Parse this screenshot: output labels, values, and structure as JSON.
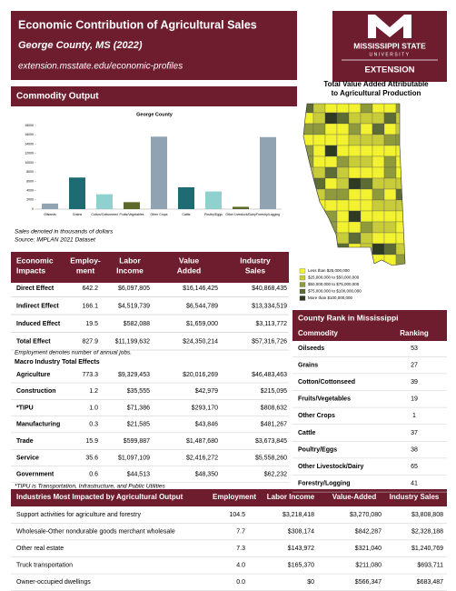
{
  "header": {
    "title": "Economic Contribution of Agricultural Sales",
    "subtitle": "George County, MS (2022)",
    "url": "extension.msstate.edu/economic-profiles"
  },
  "logo": {
    "line1": "MISSISSIPPI STATE",
    "line2": "UNIVERSITY",
    "line3": "EXTENSION"
  },
  "commodity_output": {
    "title": "Commodity Output",
    "note": "Sales denoted in thousands of dollars",
    "source": "Source: IMPLAN 2021 Dataset"
  },
  "chart_data": {
    "type": "bar",
    "title": "George County",
    "categories": [
      "Oilseeds",
      "Grains",
      "Cotton/Cottonseed",
      "Fruits/Vegetables",
      "Other Crops",
      "Cattle",
      "Poultry/Eggs",
      "Other Livestock/Dairy",
      "Forestry/Logging"
    ],
    "values": [
      1200,
      6800,
      3200,
      1500,
      15600,
      4700,
      3800,
      500,
      15500
    ],
    "colors": [
      "#8fa3b3",
      "#1f6b73",
      "#8fd1cf",
      "#5b6a2a",
      "#8fa3b3",
      "#1f6b73",
      "#8fd1cf",
      "#5b6a2a",
      "#8fa3b3"
    ],
    "ylim": [
      0,
      18000
    ],
    "yticks": [
      0,
      2000,
      4000,
      6000,
      8000,
      10000,
      12000,
      14000,
      16000,
      18000
    ]
  },
  "map": {
    "title": [
      "Total Value Added Attributable",
      "to Agricultural Production"
    ],
    "legend": [
      {
        "label": "Less than $25,000,000",
        "color": "#f2f230"
      },
      {
        "label": "$25,000,000 to $50,000,000",
        "color": "#c9cc3a"
      },
      {
        "label": "$50,000,000 to $75,000,000",
        "color": "#8e9a3b"
      },
      {
        "label": "$75,000,000 to $100,000,000",
        "color": "#5d6b34"
      },
      {
        "label": "More than $100,000,000",
        "color": "#2e3a22"
      }
    ]
  },
  "impacts": {
    "headers": [
      [
        "Economic",
        "Impacts"
      ],
      [
        "Employ-",
        "ment"
      ],
      [
        "Labor",
        "Income"
      ],
      [
        "Value",
        "Added"
      ],
      [
        "Industry",
        "Sales"
      ]
    ],
    "rows": [
      [
        "Direct Effect",
        "642.2",
        "$6,097,805",
        "$16,146,425",
        "$40,868,435"
      ],
      [
        "Indirect Effect",
        "166.1",
        "$4,519,739",
        "$6,544,789",
        "$13,334,519"
      ],
      [
        "Induced Effect",
        "19.5",
        "$582,088",
        "$1,659,000",
        "$3,113,772"
      ],
      [
        "Total Effect",
        "827.9",
        "$11,199,632",
        "$24,350,214",
        "$57,316,726"
      ]
    ],
    "note": "Employment denotes number of annual jobs.",
    "macro_title": "Macro Industry Total Effects",
    "macro_rows": [
      [
        "Agriculture",
        "773.3",
        "$9,329,453",
        "$20,016,269",
        "$46,483,463"
      ],
      [
        "Construction",
        "1.2",
        "$35,555",
        "$42,979",
        "$215,095"
      ],
      [
        "*TIPU",
        "1.0",
        "$71,386",
        "$293,170",
        "$808,632"
      ],
      [
        "Manufacturing",
        "0.3",
        "$21,585",
        "$43,846",
        "$481,267"
      ],
      [
        "Trade",
        "15.9",
        "$599,887",
        "$1,487,680",
        "$3,673,845"
      ],
      [
        "Service",
        "35.6",
        "$1,097,109",
        "$2,416,272",
        "$5,558,260"
      ],
      [
        "Government",
        "0.6",
        "$44,513",
        "$48,350",
        "$62,232"
      ]
    ],
    "macro_note": "*TIPU is Transportation, Infrastructure, and Public Utilities"
  },
  "county_rank": {
    "title": "County Rank in Mississippi",
    "headers": [
      "Commodity",
      "Ranking"
    ],
    "rows": [
      [
        "Oilseeds",
        "53"
      ],
      [
        "Grains",
        "27"
      ],
      [
        "Cotton/Cottonseed",
        "39"
      ],
      [
        "Fruits/Vegetables",
        "19"
      ],
      [
        "Other Crops",
        "1"
      ],
      [
        "Cattle",
        "37"
      ],
      [
        "Poultry/Eggs",
        "38"
      ],
      [
        "Other Livestock/Dairy",
        "65"
      ],
      [
        "Forestry/Logging",
        "41"
      ]
    ]
  },
  "industries": {
    "headers": [
      "Industries Most Impacted by Agricultural Output",
      "Employment",
      "Labor Income",
      "Value-Added",
      "Industry Sales"
    ],
    "rows": [
      [
        "Support activities for agriculture and forestry",
        "104.5",
        "$3,218,418",
        "$3,270,080",
        "$3,808,808"
      ],
      [
        "Wholesale-Other nondurable goods merchant wholesale",
        "7.7",
        "$308,174",
        "$842,287",
        "$2,328,188"
      ],
      [
        "Other real estate",
        "7.3",
        "$143,972",
        "$321,040",
        "$1,240,769"
      ],
      [
        "Truck transportation",
        "4.0",
        "$165,370",
        "$211,080",
        "$693,711"
      ],
      [
        "Owner-occupied dwellings",
        "0.0",
        "$0",
        "$566,347",
        "$683,487"
      ]
    ]
  }
}
